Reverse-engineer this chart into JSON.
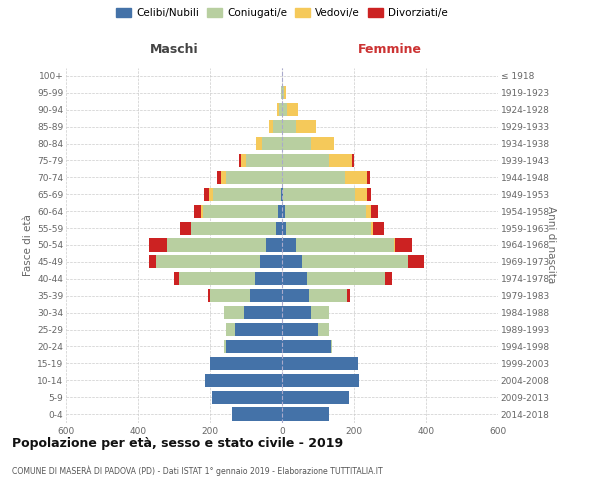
{
  "age_groups": [
    "0-4",
    "5-9",
    "10-14",
    "15-19",
    "20-24",
    "25-29",
    "30-34",
    "35-39",
    "40-44",
    "45-49",
    "50-54",
    "55-59",
    "60-64",
    "65-69",
    "70-74",
    "75-79",
    "80-84",
    "85-89",
    "90-94",
    "95-99",
    "100+"
  ],
  "birth_years": [
    "2014-2018",
    "2009-2013",
    "2004-2008",
    "1999-2003",
    "1994-1998",
    "1989-1993",
    "1984-1988",
    "1979-1983",
    "1974-1978",
    "1969-1973",
    "1964-1968",
    "1959-1963",
    "1954-1958",
    "1949-1953",
    "1944-1948",
    "1939-1943",
    "1934-1938",
    "1929-1933",
    "1924-1928",
    "1919-1923",
    "≤ 1918"
  ],
  "male_celibi": [
    140,
    195,
    215,
    200,
    155,
    130,
    105,
    90,
    75,
    60,
    45,
    18,
    10,
    2,
    0,
    0,
    0,
    0,
    0,
    0,
    0
  ],
  "male_coniugati": [
    0,
    0,
    0,
    0,
    5,
    25,
    55,
    110,
    210,
    290,
    275,
    235,
    210,
    190,
    155,
    100,
    55,
    25,
    8,
    3,
    0
  ],
  "male_vedovi": [
    0,
    0,
    0,
    0,
    0,
    0,
    0,
    0,
    0,
    0,
    0,
    0,
    5,
    10,
    15,
    15,
    18,
    12,
    5,
    0,
    0
  ],
  "male_divorziati": [
    0,
    0,
    0,
    0,
    0,
    0,
    0,
    5,
    15,
    20,
    50,
    30,
    20,
    15,
    10,
    5,
    0,
    0,
    0,
    0,
    0
  ],
  "female_nubili": [
    130,
    185,
    215,
    210,
    135,
    100,
    80,
    75,
    70,
    55,
    40,
    12,
    8,
    2,
    0,
    0,
    0,
    0,
    0,
    0,
    0
  ],
  "female_coniugate": [
    0,
    0,
    0,
    0,
    5,
    30,
    50,
    105,
    215,
    295,
    270,
    235,
    225,
    200,
    175,
    130,
    80,
    40,
    15,
    5,
    0
  ],
  "female_vedove": [
    0,
    0,
    0,
    0,
    0,
    0,
    0,
    0,
    0,
    0,
    5,
    5,
    15,
    35,
    60,
    65,
    65,
    55,
    30,
    5,
    0
  ],
  "female_divorziate": [
    0,
    0,
    0,
    0,
    0,
    0,
    0,
    10,
    20,
    45,
    45,
    30,
    20,
    10,
    10,
    5,
    0,
    0,
    0,
    0,
    0
  ],
  "color_celibi": "#4472a8",
  "color_coniugati": "#b8cfa0",
  "color_vedovi": "#f5c95a",
  "color_divorziati": "#cc2222",
  "xlim": 600,
  "title": "Popolazione per età, sesso e stato civile - 2019",
  "subtitle": "COMUNE DI MASERÀ DI PADOVA (PD) - Dati ISTAT 1° gennaio 2019 - Elaborazione TUTTITALIA.IT",
  "label_maschi": "Maschi",
  "label_femmine": "Femmine",
  "ylabel_left": "Fasce di età",
  "ylabel_right": "Anni di nascita",
  "legend_labels": [
    "Celibi/Nubili",
    "Coniugati/e",
    "Vedovi/e",
    "Divorziati/e"
  ],
  "xtick_vals": [
    -600,
    -400,
    -200,
    0,
    200,
    400,
    600
  ],
  "xtick_labels": [
    "600",
    "400",
    "200",
    "0",
    "200",
    "400",
    "600"
  ],
  "bg_color": "#ffffff",
  "grid_color": "#cccccc"
}
